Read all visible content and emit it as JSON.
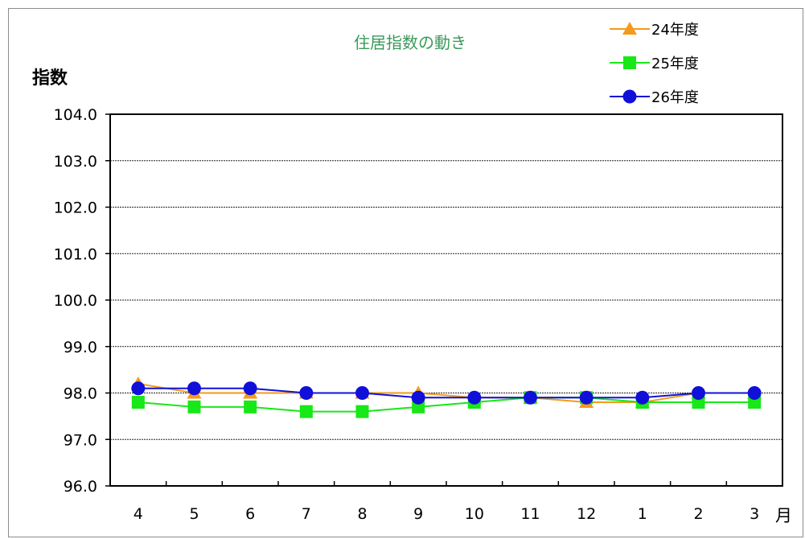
{
  "chart_data": {
    "type": "line",
    "title": "住居指数の動き",
    "ylabel": "指数",
    "xlabel": "月",
    "ylim": [
      96.0,
      104.0
    ],
    "yticks": [
      "96.0",
      "97.0",
      "98.0",
      "99.0",
      "100.0",
      "101.0",
      "102.0",
      "103.0",
      "104.0"
    ],
    "categories": [
      "4",
      "5",
      "6",
      "7",
      "8",
      "9",
      "10",
      "11",
      "12",
      "1",
      "2",
      "3"
    ],
    "grid": true,
    "legend_position": "top-right",
    "series": [
      {
        "name": "24年度",
        "marker": "triangle",
        "color": "#f59a1a",
        "values": [
          98.2,
          98.0,
          98.0,
          98.0,
          98.0,
          98.0,
          97.9,
          97.9,
          97.8,
          97.8,
          98.0,
          98.0
        ]
      },
      {
        "name": "25年度",
        "marker": "square",
        "color": "#17e817",
        "values": [
          97.8,
          97.7,
          97.7,
          97.6,
          97.6,
          97.7,
          97.8,
          97.9,
          97.9,
          97.8,
          97.8,
          97.8
        ]
      },
      {
        "name": "26年度",
        "marker": "circle",
        "color": "#1010d8",
        "values": [
          98.1,
          98.1,
          98.1,
          98.0,
          98.0,
          97.9,
          97.9,
          97.9,
          97.9,
          97.9,
          98.0,
          98.0
        ]
      }
    ],
    "title_color": "#3a9a5a"
  }
}
